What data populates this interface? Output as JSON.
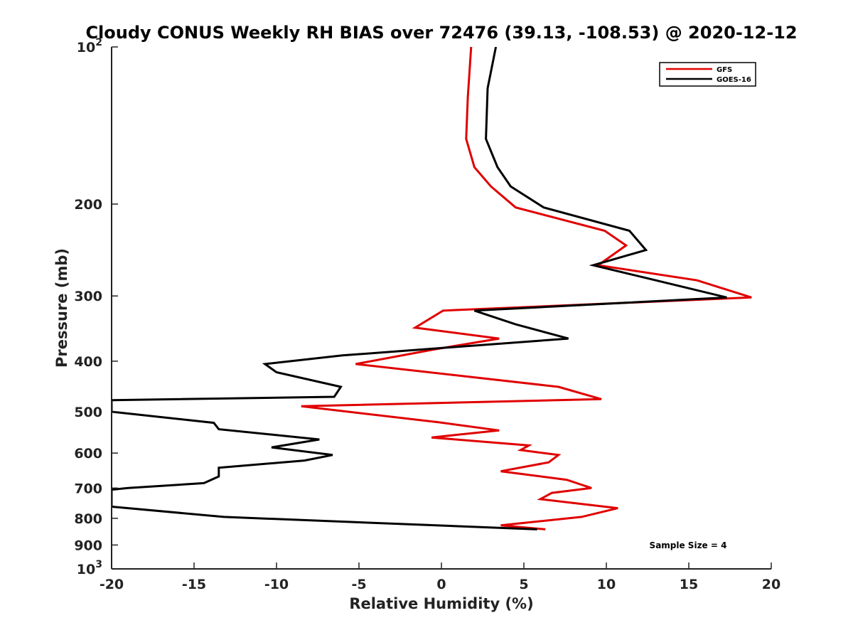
{
  "chart_data": {
    "type": "line",
    "title": "Cloudy CONUS Weekly RH BIAS over 72476 (39.13, -108.53) @ 2020-12-12",
    "xlabel": "Relative Humidity (%)",
    "ylabel": "Pressure (mb)",
    "xlim": [
      -20,
      20
    ],
    "ylim": [
      100,
      1000
    ],
    "yscale": "log",
    "y_reversed": true,
    "grid": false,
    "legend_position": "top-right",
    "x_ticks": [
      "-20",
      "-15",
      "-10",
      "-5",
      "0",
      "5",
      "10",
      "15",
      "20"
    ],
    "y_ticks": [
      {
        "value": 100,
        "base": "10",
        "exp": "2"
      },
      {
        "value": 200,
        "label": "200"
      },
      {
        "value": 300,
        "label": "300"
      },
      {
        "value": 400,
        "label": "400"
      },
      {
        "value": 500,
        "label": "500"
      },
      {
        "value": 600,
        "label": "600"
      },
      {
        "value": 700,
        "label": "700"
      },
      {
        "value": 800,
        "label": "800"
      },
      {
        "value": 900,
        "label": "900"
      },
      {
        "value": 1000,
        "base": "10",
        "exp": "3"
      }
    ],
    "annotation": "Sample Size = 4",
    "series": [
      {
        "name": "GFS",
        "color": "#e00000",
        "points": [
          [
            1.8,
            100
          ],
          [
            1.6,
            125
          ],
          [
            1.5,
            150
          ],
          [
            2.0,
            170
          ],
          [
            3.0,
            185
          ],
          [
            4.5,
            203
          ],
          [
            9.9,
            225
          ],
          [
            11.2,
            240
          ],
          [
            9.5,
            262
          ],
          [
            15.5,
            280
          ],
          [
            18.8,
            302
          ],
          [
            0.1,
            320
          ],
          [
            -1.6,
            345
          ],
          [
            3.5,
            362
          ],
          [
            -0.5,
            380
          ],
          [
            -5.2,
            405
          ],
          [
            7.1,
            448
          ],
          [
            9.7,
            473
          ],
          [
            -8.5,
            488
          ],
          [
            -0.1,
            524
          ],
          [
            3.5,
            543
          ],
          [
            -0.6,
            560
          ],
          [
            5.3,
            580
          ],
          [
            4.8,
            592
          ],
          [
            7.1,
            605
          ],
          [
            6.5,
            625
          ],
          [
            3.6,
            650
          ],
          [
            7.6,
            675
          ],
          [
            9.1,
            700
          ],
          [
            6.7,
            715
          ],
          [
            6.0,
            735
          ],
          [
            10.7,
            765
          ],
          [
            8.5,
            795
          ],
          [
            3.6,
            825
          ],
          [
            6.3,
            840
          ]
        ]
      },
      {
        "name": "GOES-16",
        "color": "#000000",
        "points": [
          [
            3.3,
            100
          ],
          [
            2.8,
            120
          ],
          [
            2.7,
            150
          ],
          [
            3.4,
            170
          ],
          [
            4.2,
            185
          ],
          [
            6.2,
            203
          ],
          [
            11.4,
            225
          ],
          [
            12.4,
            245
          ],
          [
            9.2,
            262
          ],
          [
            13.0,
            280
          ],
          [
            17.3,
            302
          ],
          [
            2.0,
            320
          ],
          [
            4.5,
            340
          ],
          [
            7.7,
            362
          ],
          [
            -6.0,
            390
          ],
          [
            -10.7,
            405
          ],
          [
            -10.0,
            420
          ],
          [
            -6.1,
            448
          ],
          [
            -6.5,
            468
          ],
          [
            -20.0,
            475
          ],
          [
            -20.0,
            500
          ],
          [
            -13.8,
            525
          ],
          [
            -13.5,
            540
          ],
          [
            -7.4,
            565
          ],
          [
            -10.3,
            585
          ],
          [
            -6.6,
            605
          ],
          [
            -8.3,
            620
          ],
          [
            -13.5,
            640
          ],
          [
            -13.5,
            665
          ],
          [
            -14.4,
            685
          ],
          [
            -19.0,
            700
          ],
          [
            -20.0,
            705
          ],
          [
            -20.0,
            760
          ],
          [
            -13.2,
            795
          ],
          [
            5.8,
            840
          ]
        ]
      }
    ]
  }
}
